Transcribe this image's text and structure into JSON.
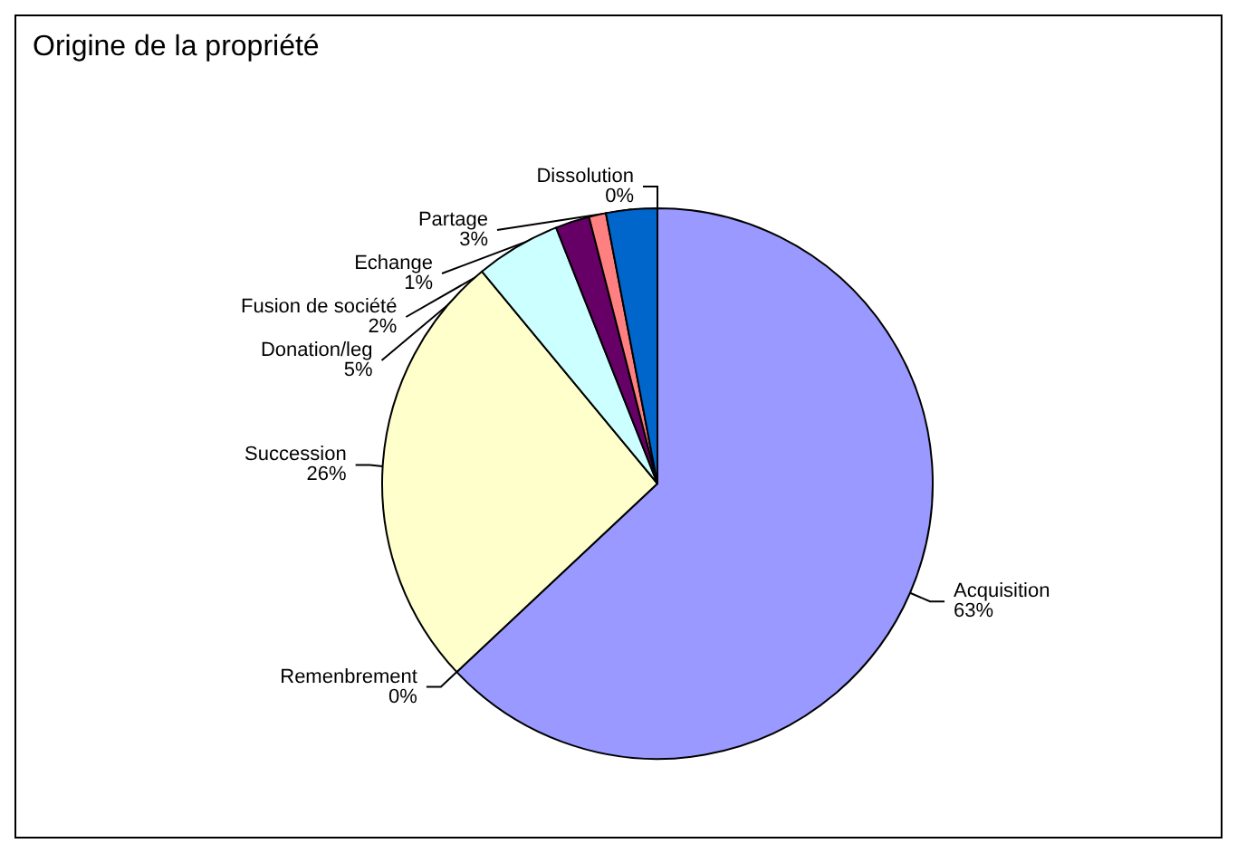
{
  "chart_data": {
    "type": "pie",
    "title": "Origine de la propriété",
    "categories": [
      "Acquisition",
      "Remenbrement",
      "Succession",
      "Donation/leg",
      "Fusion de société",
      "Echange",
      "Partage",
      "Dissolution"
    ],
    "values": [
      63,
      0,
      26,
      5,
      2,
      1,
      3,
      0
    ],
    "value_labels": [
      "63%",
      "0%",
      "26%",
      "5%",
      "2%",
      "1%",
      "3%",
      "0%"
    ],
    "colors": [
      "#9999ff",
      "#993366",
      "#ffffcc",
      "#ccffff",
      "#660066",
      "#ff8080",
      "#0066cc",
      "#ccccff"
    ]
  }
}
